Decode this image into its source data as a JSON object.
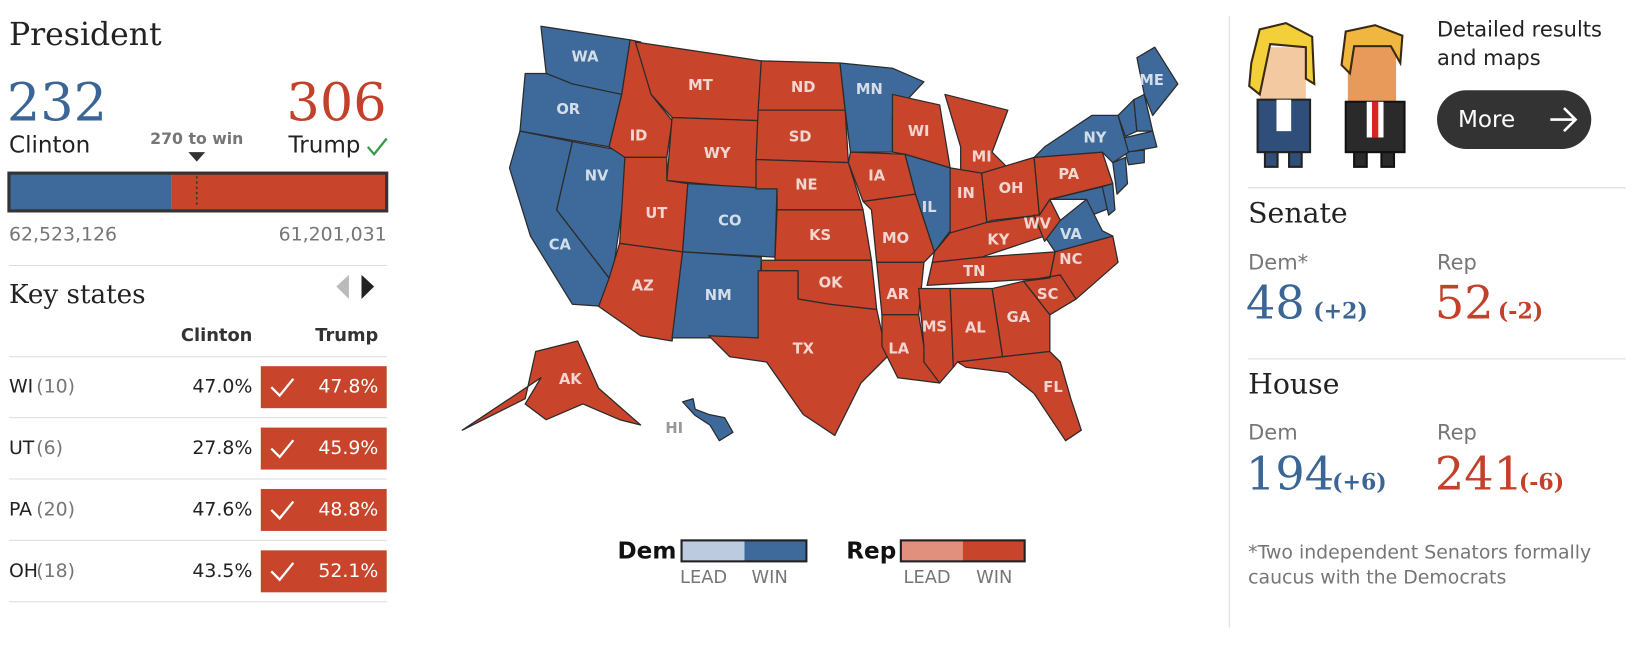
{
  "president": {
    "title": "President",
    "clinton": {
      "name": "Clinton",
      "electoral_votes": 232,
      "popular_vote": "62,523,126",
      "color": "#3d6a9a"
    },
    "trump": {
      "name": "Trump",
      "electoral_votes": 306,
      "popular_vote": "61,201,031",
      "color": "#c8442b"
    },
    "threshold": "270 to win"
  },
  "key_states": {
    "title": "Key states",
    "headers": [
      "Clinton",
      "Trump"
    ],
    "rows": [
      {
        "state": "WI",
        "ev": "(10)",
        "clinton": "47.0%",
        "trump": "47.8%"
      },
      {
        "state": "UT",
        "ev": "(6)",
        "clinton": "27.8%",
        "trump": "45.9%"
      },
      {
        "state": "PA",
        "ev": "(20)",
        "clinton": "47.6%",
        "trump": "48.8%"
      },
      {
        "state": "OH",
        "ev": "(18)",
        "clinton": "43.5%",
        "trump": "52.1%"
      }
    ]
  },
  "map": {
    "states": [
      {
        "label": "WA",
        "color": "#3d6a9a"
      },
      {
        "label": "OR",
        "color": "#3d6a9a"
      },
      {
        "label": "CA",
        "color": "#3d6a9a"
      },
      {
        "label": "NV",
        "color": "#3d6a9a"
      },
      {
        "label": "ID",
        "color": "#c8442b"
      },
      {
        "label": "MT",
        "color": "#c8442b"
      },
      {
        "label": "WY",
        "color": "#c8442b"
      },
      {
        "label": "UT",
        "color": "#c8442b"
      },
      {
        "label": "CO",
        "color": "#3d6a9a"
      },
      {
        "label": "AZ",
        "color": "#c8442b"
      },
      {
        "label": "NM",
        "color": "#3d6a9a"
      },
      {
        "label": "ND",
        "color": "#c8442b"
      },
      {
        "label": "SD",
        "color": "#c8442b"
      },
      {
        "label": "NE",
        "color": "#c8442b"
      },
      {
        "label": "KS",
        "color": "#c8442b"
      },
      {
        "label": "OK",
        "color": "#c8442b"
      },
      {
        "label": "TX",
        "color": "#c8442b"
      },
      {
        "label": "MN",
        "color": "#3d6a9a"
      },
      {
        "label": "IA",
        "color": "#c8442b"
      },
      {
        "label": "MO",
        "color": "#c8442b"
      },
      {
        "label": "AR",
        "color": "#c8442b"
      },
      {
        "label": "LA",
        "color": "#c8442b"
      },
      {
        "label": "WI",
        "color": "#c8442b"
      },
      {
        "label": "IL",
        "color": "#3d6a9a"
      },
      {
        "label": "MI",
        "color": "#c8442b"
      },
      {
        "label": "IN",
        "color": "#c8442b"
      },
      {
        "label": "OH",
        "color": "#c8442b"
      },
      {
        "label": "KY",
        "color": "#c8442b"
      },
      {
        "label": "TN",
        "color": "#c8442b"
      },
      {
        "label": "MS",
        "color": "#c8442b"
      },
      {
        "label": "AL",
        "color": "#c8442b"
      },
      {
        "label": "GA",
        "color": "#c8442b"
      },
      {
        "label": "FL",
        "color": "#c8442b"
      },
      {
        "label": "SC",
        "color": "#c8442b"
      },
      {
        "label": "NC",
        "color": "#c8442b"
      },
      {
        "label": "VA",
        "color": "#3d6a9a"
      },
      {
        "label": "WV",
        "color": "#c8442b"
      },
      {
        "label": "PA",
        "color": "#c8442b"
      },
      {
        "label": "NY",
        "color": "#3d6a9a"
      },
      {
        "label": "ME",
        "color": "#3d6a9a"
      },
      {
        "label": "AK",
        "color": "#c8442b"
      },
      {
        "label": "HI",
        "color": "#3d6a9a"
      }
    ],
    "legend": {
      "dem": "Dem",
      "rep": "Rep",
      "lead": "LEAD",
      "win": "WIN"
    }
  },
  "promo": {
    "lines": [
      "Detailed results",
      "and maps"
    ],
    "button": "More"
  },
  "senate": {
    "title": "Senate",
    "dem": {
      "label": "Dem*",
      "seats": 48,
      "change": "(+2)"
    },
    "rep": {
      "label": "Rep",
      "seats": 52,
      "change": "(-2)"
    }
  },
  "house": {
    "title": "House",
    "dem": {
      "label": "Dem",
      "seats": 194,
      "change": "(+6)"
    },
    "rep": {
      "label": "Rep",
      "seats": 241,
      "change": "(-6)"
    }
  },
  "footnote": [
    "*Two independent Senators formally",
    "caucus with the Democrats"
  ]
}
